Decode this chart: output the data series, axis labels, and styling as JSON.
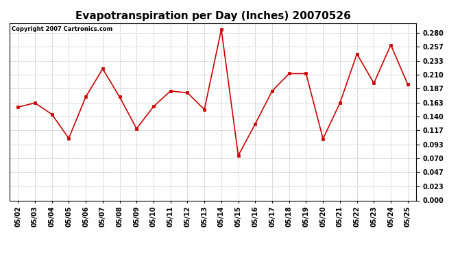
{
  "title": "Evapotranspiration per Day (Inches) 20070526",
  "copyright": "Copyright 2007 Cartronics.com",
  "dates": [
    "05/02",
    "05/03",
    "05/04",
    "05/05",
    "05/06",
    "05/07",
    "05/08",
    "05/09",
    "05/10",
    "05/11",
    "05/12",
    "05/13",
    "05/14",
    "05/15",
    "05/16",
    "05/17",
    "05/18",
    "05/19",
    "05/20",
    "05/21",
    "05/22",
    "05/23",
    "05/24",
    "05/25"
  ],
  "values": [
    0.156,
    0.163,
    0.144,
    0.104,
    0.173,
    0.22,
    0.173,
    0.12,
    0.157,
    0.183,
    0.18,
    0.152,
    0.286,
    0.075,
    0.128,
    0.183,
    0.212,
    0.212,
    0.103,
    0.163,
    0.245,
    0.196,
    0.26,
    0.194
  ],
  "ylim": [
    0.0,
    0.2964
  ],
  "yticks": [
    0.0,
    0.023,
    0.047,
    0.07,
    0.093,
    0.117,
    0.14,
    0.163,
    0.187,
    0.21,
    0.233,
    0.257,
    0.28
  ],
  "line_color": "#cc0000",
  "marker": "s",
  "marker_size": 2.5,
  "bg_color": "#ffffff",
  "grid_color": "#bbbbbb",
  "title_fontsize": 11,
  "tick_fontsize": 7,
  "copyright_fontsize": 6
}
